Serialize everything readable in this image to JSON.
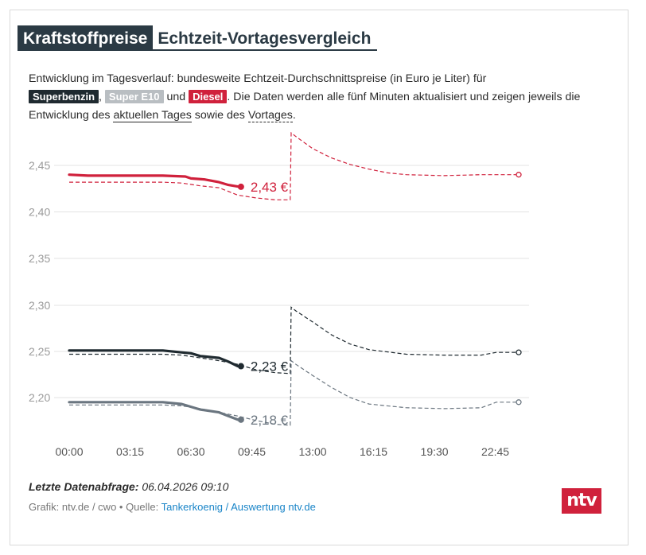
{
  "title": {
    "part1": "Kraftstoffpreise",
    "part2": "Echtzeit-Vortagesvergleich"
  },
  "description": {
    "intro": "Entwicklung im Tagesverlauf: bundesweite Echtzeit-Durchschnittspreise (in Euro je Liter) für",
    "tag_superbenzin": "Superbenzin",
    "sep1": ",",
    "tag_e10": "Super E10",
    "and": "und",
    "tag_diesel": "Diesel",
    "rest": ". Die Daten werden alle fünf Minuten aktualisiert und zeigen jeweils die Entwicklung des",
    "link_today": "aktuellen Tages",
    "sowie": "sowie des",
    "link_yesterday": "Vortages",
    "end": "."
  },
  "footer": {
    "last_query_label": "Letzte Datenabfrage:",
    "last_query_value": "06.04.2026 09:10",
    "credit_prefix": "Grafik: ntv.de / cwo • Quelle:",
    "credit_link": "Tankerkoenig / Auswertung ntv.de",
    "logo": "ntv"
  },
  "colors": {
    "diesel": "#d0213c",
    "superbenzin": "#1f2a30",
    "e10": "#6b7680",
    "grid": "#e3e3e3",
    "axis_text": "#9a9a9a"
  },
  "chart_data": {
    "type": "line",
    "x_axis": {
      "min": 0,
      "max": 24,
      "ticks": [
        0,
        3.25,
        6.5,
        9.75,
        13,
        16.25,
        19.5,
        22.75
      ],
      "tick_labels": [
        "00:00",
        "03:15",
        "06:30",
        "09:45",
        "13:00",
        "16:15",
        "19:30",
        "22:45"
      ]
    },
    "y_axis": {
      "ticks": [
        2.2,
        2.25,
        2.3,
        2.35,
        2.4,
        2.45
      ],
      "tick_labels": [
        "2,20",
        "2,25",
        "2,30",
        "2,35",
        "2,40",
        "2,45"
      ]
    },
    "grid": true,
    "series": [
      {
        "name": "Diesel",
        "today": {
          "x": [
            0,
            1,
            3,
            5,
            6.2,
            6.5,
            7.2,
            8,
            8.5,
            9.1,
            9.17
          ],
          "y": [
            2.44,
            2.439,
            2.439,
            2.439,
            2.438,
            2.436,
            2.435,
            2.432,
            2.429,
            2.427,
            2.427
          ]
        },
        "label": "2,43 €",
        "yesterday": {
          "x": [
            0,
            1,
            3,
            5,
            6,
            7,
            8,
            9,
            10,
            11,
            11.8,
            11.85,
            12.1,
            13,
            14,
            15,
            16,
            17,
            18,
            20,
            22,
            24
          ],
          "y": [
            2.432,
            2.432,
            2.432,
            2.432,
            2.431,
            2.428,
            2.426,
            2.418,
            2.415,
            2.413,
            2.413,
            2.485,
            2.481,
            2.468,
            2.458,
            2.451,
            2.446,
            2.442,
            2.44,
            2.439,
            2.44,
            2.44
          ]
        }
      },
      {
        "name": "Superbenzin",
        "today": {
          "x": [
            0,
            1,
            3,
            5,
            6,
            6.5,
            7,
            8,
            8.5,
            9,
            9.17
          ],
          "y": [
            2.251,
            2.251,
            2.251,
            2.251,
            2.249,
            2.248,
            2.245,
            2.243,
            2.239,
            2.234,
            2.234
          ]
        },
        "label": "2,23 €",
        "yesterday": {
          "x": [
            0,
            1,
            3,
            5,
            6,
            7,
            8,
            9,
            10,
            11,
            11.8,
            11.85,
            12.1,
            13,
            14,
            15,
            16,
            18,
            20,
            22,
            22.8,
            24
          ],
          "y": [
            2.247,
            2.247,
            2.247,
            2.247,
            2.246,
            2.243,
            2.24,
            2.236,
            2.23,
            2.227,
            2.226,
            2.298,
            2.294,
            2.282,
            2.268,
            2.258,
            2.252,
            2.247,
            2.246,
            2.246,
            2.249,
            2.249
          ]
        }
      },
      {
        "name": "Super E10",
        "today": {
          "x": [
            0,
            1,
            3,
            5,
            6,
            6.5,
            7,
            8,
            8.5,
            9,
            9.17
          ],
          "y": [
            2.195,
            2.195,
            2.195,
            2.195,
            2.193,
            2.19,
            2.187,
            2.184,
            2.18,
            2.176,
            2.176
          ]
        },
        "label": "2,18 €",
        "yesterday": {
          "x": [
            0,
            1,
            3,
            5,
            6,
            7,
            8,
            9,
            10,
            11,
            11.8,
            11.85,
            12.1,
            13,
            14,
            15,
            16,
            18,
            20,
            22,
            22.8,
            24
          ],
          "y": [
            2.192,
            2.192,
            2.192,
            2.192,
            2.191,
            2.188,
            2.184,
            2.18,
            2.175,
            2.171,
            2.17,
            2.24,
            2.236,
            2.224,
            2.211,
            2.2,
            2.193,
            2.189,
            2.188,
            2.189,
            2.195,
            2.195
          ]
        }
      }
    ]
  }
}
